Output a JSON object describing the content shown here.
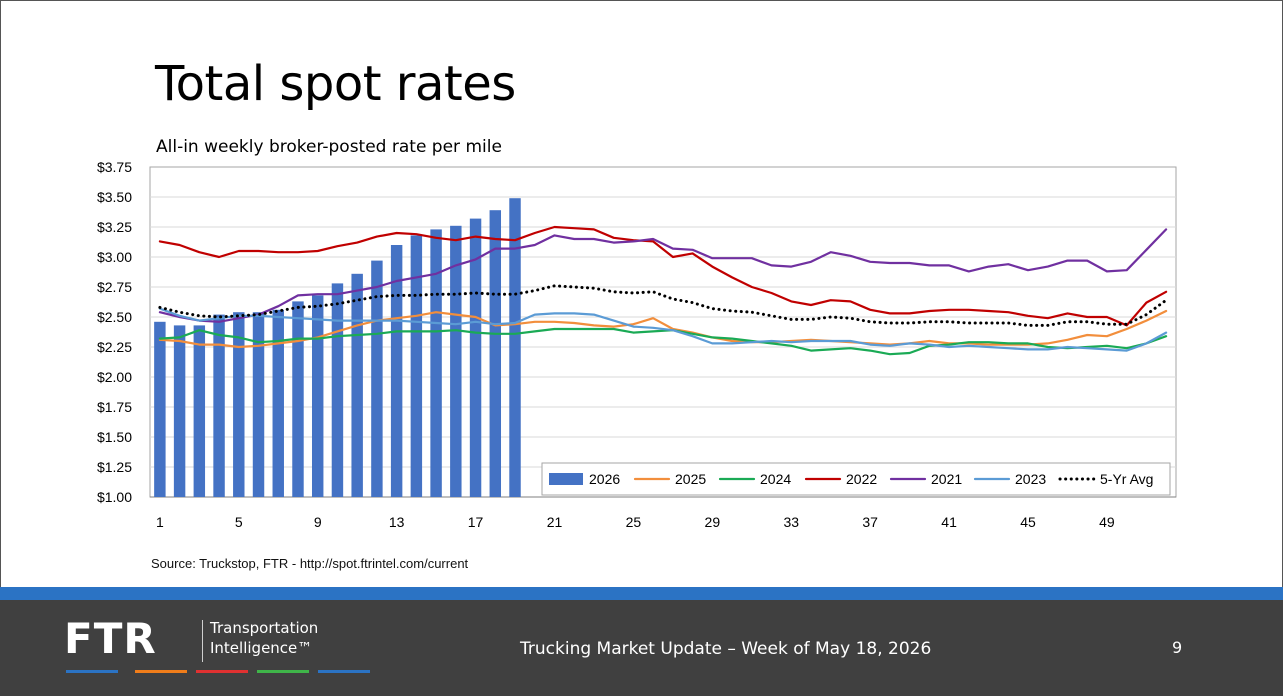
{
  "slide": {
    "title": "Total spot rates",
    "subtitle": "All-in weekly broker-posted rate per mile",
    "source": "Source: Truckstop, FTR - http://spot.ftrintel.com/current",
    "footer_title": "Trucking Market Update – Week of May 18, 2026",
    "page_number": "9",
    "logo": {
      "wordmark": "FTR",
      "tagline_line1": "Transportation",
      "tagline_line2": "Intelligence™"
    },
    "colors": {
      "footer_bg": "#404040",
      "footer_stripe": "#2b73c4",
      "logo_bars": [
        "#2b73c4",
        "#f07d1a",
        "#e03131",
        "#3fb549",
        "#2b73c4"
      ]
    }
  },
  "chart_data": {
    "type": "bar",
    "y_tick_labels": [
      "$1.00",
      "$1.25",
      "$1.50",
      "$1.75",
      "$2.00",
      "$2.25",
      "$2.50",
      "$2.75",
      "$3.00",
      "$3.25",
      "$3.50",
      "$3.75"
    ],
    "x_tick_labels": [
      "1",
      "5",
      "9",
      "13",
      "17",
      "21",
      "25",
      "29",
      "33",
      "37",
      "41",
      "45",
      "49"
    ],
    "x_ticks": [
      1,
      5,
      9,
      13,
      17,
      21,
      25,
      29,
      33,
      37,
      41,
      45,
      49
    ],
    "ylim": [
      1.0,
      3.75
    ],
    "xlim": [
      0.5,
      52.5
    ],
    "grid": true,
    "legend_position": "bottom-right",
    "series": [
      {
        "name": "2026",
        "kind": "bar",
        "color": "#4472c4",
        "x": [
          1,
          2,
          3,
          4,
          5,
          6,
          7,
          8,
          9,
          10,
          11,
          12,
          13,
          14,
          15,
          16,
          17,
          18,
          19
        ],
        "values": [
          2.46,
          2.43,
          2.43,
          2.52,
          2.54,
          2.54,
          2.56,
          2.63,
          2.68,
          2.78,
          2.86,
          2.97,
          3.1,
          3.18,
          3.23,
          3.26,
          3.32,
          3.39,
          3.49
        ]
      },
      {
        "name": "2025",
        "kind": "line",
        "color": "#f28e3c",
        "x": [
          1,
          2,
          3,
          4,
          5,
          6,
          7,
          8,
          9,
          10,
          11,
          12,
          13,
          14,
          15,
          16,
          17,
          18,
          19,
          20,
          21,
          22,
          23,
          24,
          25,
          26,
          27,
          28,
          29,
          30,
          31,
          32,
          33,
          34,
          35,
          36,
          37,
          38,
          39,
          40,
          41,
          42,
          43,
          44,
          45,
          46,
          47,
          48,
          49,
          50,
          51,
          52
        ],
        "values": [
          2.31,
          2.3,
          2.27,
          2.27,
          2.25,
          2.26,
          2.28,
          2.3,
          2.33,
          2.38,
          2.43,
          2.47,
          2.49,
          2.51,
          2.54,
          2.52,
          2.5,
          2.43,
          2.44,
          2.46,
          2.46,
          2.45,
          2.43,
          2.42,
          2.44,
          2.49,
          2.4,
          2.37,
          2.33,
          2.3,
          2.29,
          2.29,
          2.3,
          2.31,
          2.3,
          2.29,
          2.28,
          2.27,
          2.28,
          2.3,
          2.28,
          2.28,
          2.27,
          2.27,
          2.27,
          2.28,
          2.31,
          2.35,
          2.34,
          2.4,
          2.47,
          2.55
        ]
      },
      {
        "name": "2024",
        "kind": "line",
        "color": "#1aaa55",
        "x": [
          1,
          2,
          3,
          4,
          5,
          6,
          7,
          8,
          9,
          10,
          11,
          12,
          13,
          14,
          15,
          16,
          17,
          18,
          19,
          20,
          21,
          22,
          23,
          24,
          25,
          26,
          27,
          28,
          29,
          30,
          31,
          32,
          33,
          34,
          35,
          36,
          37,
          38,
          39,
          40,
          41,
          42,
          43,
          44,
          45,
          46,
          47,
          48,
          49,
          50,
          51,
          52
        ],
        "values": [
          2.32,
          2.33,
          2.39,
          2.35,
          2.33,
          2.29,
          2.3,
          2.32,
          2.32,
          2.34,
          2.35,
          2.36,
          2.38,
          2.38,
          2.38,
          2.39,
          2.37,
          2.36,
          2.36,
          2.38,
          2.4,
          2.4,
          2.4,
          2.4,
          2.37,
          2.38,
          2.39,
          2.36,
          2.33,
          2.32,
          2.3,
          2.28,
          2.26,
          2.22,
          2.23,
          2.24,
          2.22,
          2.19,
          2.2,
          2.26,
          2.27,
          2.29,
          2.29,
          2.28,
          2.28,
          2.25,
          2.24,
          2.25,
          2.26,
          2.24,
          2.28,
          2.34
        ]
      },
      {
        "name": "2022",
        "kind": "line",
        "color": "#c00000",
        "x": [
          1,
          2,
          3,
          4,
          5,
          6,
          7,
          8,
          9,
          10,
          11,
          12,
          13,
          14,
          15,
          16,
          17,
          18,
          19,
          20,
          21,
          22,
          23,
          24,
          25,
          26,
          27,
          28,
          29,
          30,
          31,
          32,
          33,
          34,
          35,
          36,
          37,
          38,
          39,
          40,
          41,
          42,
          43,
          44,
          45,
          46,
          47,
          48,
          49,
          50,
          51,
          52
        ],
        "values": [
          3.13,
          3.1,
          3.04,
          3.0,
          3.05,
          3.05,
          3.04,
          3.04,
          3.05,
          3.09,
          3.12,
          3.17,
          3.2,
          3.19,
          3.16,
          3.14,
          3.17,
          3.15,
          3.14,
          3.2,
          3.25,
          3.24,
          3.23,
          3.16,
          3.14,
          3.13,
          3.0,
          3.03,
          2.92,
          2.83,
          2.75,
          2.7,
          2.63,
          2.6,
          2.64,
          2.63,
          2.56,
          2.53,
          2.53,
          2.55,
          2.56,
          2.56,
          2.55,
          2.54,
          2.51,
          2.49,
          2.53,
          2.5,
          2.5,
          2.43,
          2.62,
          2.71
        ]
      },
      {
        "name": "2021",
        "kind": "line",
        "color": "#7030a0",
        "x": [
          1,
          2,
          3,
          4,
          5,
          6,
          7,
          8,
          9,
          10,
          11,
          12,
          13,
          14,
          15,
          16,
          17,
          18,
          19,
          20,
          21,
          22,
          23,
          24,
          25,
          26,
          27,
          28,
          29,
          30,
          31,
          32,
          33,
          34,
          35,
          36,
          37,
          38,
          39,
          40,
          41,
          42,
          43,
          44,
          45,
          46,
          47,
          48,
          49,
          50,
          51,
          52
        ],
        "values": [
          2.54,
          2.5,
          2.47,
          2.46,
          2.49,
          2.52,
          2.59,
          2.68,
          2.69,
          2.69,
          2.72,
          2.75,
          2.8,
          2.83,
          2.86,
          2.93,
          2.98,
          3.07,
          3.07,
          3.1,
          3.18,
          3.15,
          3.15,
          3.12,
          3.13,
          3.15,
          3.07,
          3.06,
          2.99,
          2.99,
          2.99,
          2.93,
          2.92,
          2.96,
          3.04,
          3.01,
          2.96,
          2.95,
          2.95,
          2.93,
          2.93,
          2.88,
          2.92,
          2.94,
          2.89,
          2.92,
          2.97,
          2.97,
          2.88,
          2.89,
          3.06,
          3.23
        ]
      },
      {
        "name": "2023",
        "kind": "line",
        "color": "#5b9bd5",
        "x": [
          1,
          2,
          3,
          4,
          5,
          6,
          7,
          8,
          9,
          10,
          11,
          12,
          13,
          14,
          15,
          16,
          17,
          18,
          19,
          20,
          21,
          22,
          23,
          24,
          25,
          26,
          27,
          28,
          29,
          30,
          31,
          32,
          33,
          34,
          35,
          36,
          37,
          38,
          39,
          40,
          41,
          42,
          43,
          44,
          45,
          46,
          47,
          48,
          49,
          50,
          51,
          52
        ],
        "values": [
          2.57,
          2.51,
          2.47,
          2.49,
          2.51,
          2.51,
          2.5,
          2.49,
          2.48,
          2.47,
          2.47,
          2.47,
          2.47,
          2.46,
          2.45,
          2.44,
          2.46,
          2.44,
          2.45,
          2.52,
          2.53,
          2.53,
          2.52,
          2.47,
          2.42,
          2.41,
          2.39,
          2.34,
          2.28,
          2.28,
          2.29,
          2.3,
          2.29,
          2.3,
          2.3,
          2.3,
          2.27,
          2.26,
          2.28,
          2.27,
          2.25,
          2.26,
          2.25,
          2.24,
          2.23,
          2.23,
          2.25,
          2.24,
          2.23,
          2.22,
          2.28,
          2.37
        ]
      },
      {
        "name": "5-Yr Avg",
        "kind": "dotted-line",
        "color": "#000000",
        "x": [
          1,
          2,
          3,
          4,
          5,
          6,
          7,
          8,
          9,
          10,
          11,
          12,
          13,
          14,
          15,
          16,
          17,
          18,
          19,
          20,
          21,
          22,
          23,
          24,
          25,
          26,
          27,
          28,
          29,
          30,
          31,
          32,
          33,
          34,
          35,
          36,
          37,
          38,
          39,
          40,
          41,
          42,
          43,
          44,
          45,
          46,
          47,
          48,
          49,
          50,
          51,
          52
        ],
        "values": [
          2.58,
          2.54,
          2.51,
          2.5,
          2.51,
          2.52,
          2.55,
          2.58,
          2.59,
          2.61,
          2.64,
          2.67,
          2.68,
          2.68,
          2.69,
          2.69,
          2.7,
          2.69,
          2.69,
          2.72,
          2.76,
          2.75,
          2.74,
          2.71,
          2.7,
          2.71,
          2.65,
          2.62,
          2.57,
          2.55,
          2.54,
          2.51,
          2.48,
          2.48,
          2.5,
          2.49,
          2.46,
          2.45,
          2.45,
          2.46,
          2.46,
          2.45,
          2.45,
          2.45,
          2.43,
          2.43,
          2.46,
          2.46,
          2.44,
          2.44,
          2.52,
          2.64
        ]
      }
    ]
  }
}
